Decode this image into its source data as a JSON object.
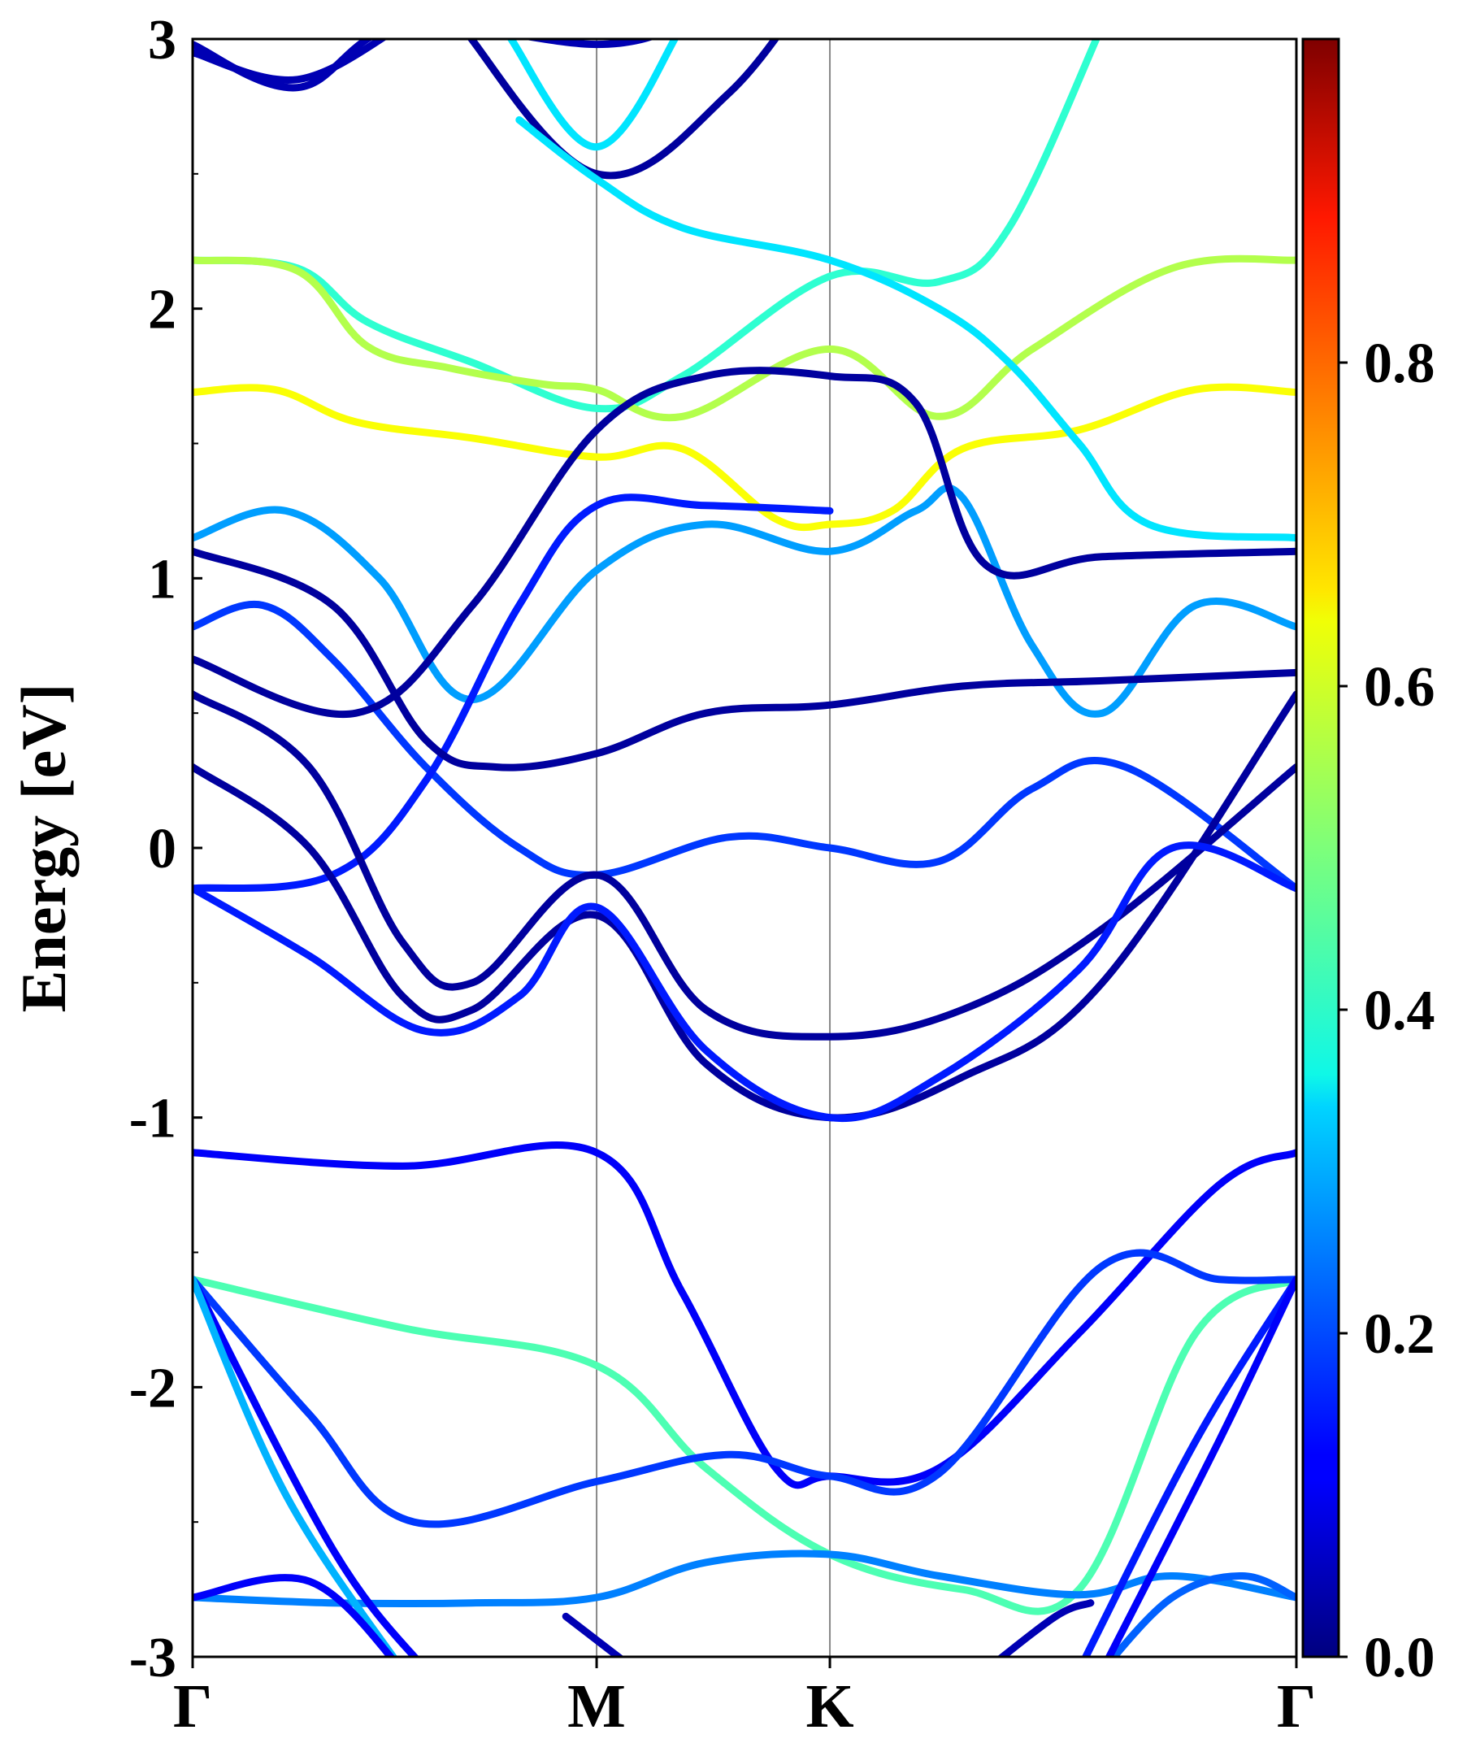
{
  "chart_data": {
    "type": "line",
    "subtype": "electronic band structure with projected weight",
    "title": "",
    "xlabel": "",
    "ylabel": "Energy [eV]",
    "ylim": [
      -3,
      3
    ],
    "y_ticks": [
      "-3",
      "-2",
      "-1",
      "0",
      "1",
      "2",
      "3"
    ],
    "x_ticks": [
      {
        "label": "Γ",
        "k": 0.0
      },
      {
        "label": "M",
        "k": 1.732
      },
      {
        "label": "K",
        "k": 2.732
      },
      {
        "label": "Γ",
        "k": 4.732
      }
    ],
    "xlim": [
      0,
      4.732
    ],
    "grid": false,
    "vertical_lines_at": [
      "M",
      "K"
    ],
    "colorbar": {
      "colormap": "jet",
      "range": [
        0.0,
        1.0
      ],
      "ticks": [
        "0.0",
        "0.2",
        "0.4",
        "0.6",
        "0.8"
      ]
    },
    "bands": [
      {
        "points": [
          [
            0,
            2.98
          ],
          [
            0.45,
            2.82
          ],
          [
            0.9,
            3.05
          ],
          [
            1.732,
            2.98
          ],
          [
            2.1,
            3.05
          ]
        ],
        "weight": 0.05
      },
      {
        "points": [
          [
            0,
            2.95
          ],
          [
            0.45,
            2.85
          ],
          [
            0.9,
            3.05
          ]
        ],
        "weight": 0.05
      },
      {
        "points": [
          [
            1.35,
            3.02
          ],
          [
            1.732,
            2.6
          ],
          [
            2.1,
            3.05
          ]
        ],
        "weight": 0.35
      },
      {
        "points": [
          [
            1.15,
            3.05
          ],
          [
            1.732,
            2.5
          ],
          [
            2.3,
            2.8
          ],
          [
            2.732,
            3.3
          ]
        ],
        "weight": 0.03
      },
      {
        "points": [
          [
            0,
            2.18
          ],
          [
            0.45,
            2.15
          ],
          [
            0.75,
            1.95
          ],
          [
            1.2,
            1.8
          ],
          [
            1.732,
            1.63
          ],
          [
            2.1,
            1.75
          ],
          [
            2.732,
            2.12
          ],
          [
            3.2,
            2.1
          ],
          [
            3.5,
            2.3
          ],
          [
            3.9,
            3.05
          ]
        ],
        "weight": 0.42
      },
      {
        "points": [
          [
            0,
            2.18
          ],
          [
            0.45,
            2.14
          ],
          [
            0.75,
            1.86
          ],
          [
            1.1,
            1.78
          ],
          [
            1.5,
            1.72
          ],
          [
            1.732,
            1.7
          ],
          [
            2.1,
            1.6
          ],
          [
            2.732,
            1.85
          ],
          [
            3.2,
            1.6
          ],
          [
            3.6,
            1.85
          ],
          [
            4.2,
            2.15
          ],
          [
            4.732,
            2.18
          ]
        ],
        "weight": 0.55
      },
      {
        "points": [
          [
            0,
            1.69
          ],
          [
            0.35,
            1.7
          ],
          [
            0.7,
            1.58
          ],
          [
            1.2,
            1.52
          ],
          [
            1.732,
            1.45
          ],
          [
            2.1,
            1.48
          ],
          [
            2.5,
            1.22
          ],
          [
            2.732,
            1.2
          ],
          [
            3.0,
            1.25
          ],
          [
            3.3,
            1.48
          ],
          [
            3.8,
            1.55
          ],
          [
            4.3,
            1.7
          ],
          [
            4.732,
            1.69
          ]
        ],
        "weight": 0.62
      },
      {
        "points": [
          [
            1.4,
            2.7
          ],
          [
            1.732,
            2.48
          ],
          [
            2.1,
            2.3
          ],
          [
            2.732,
            2.18
          ],
          [
            3.2,
            2.0
          ],
          [
            3.5,
            1.8
          ],
          [
            3.8,
            1.5
          ],
          [
            4.1,
            1.2
          ],
          [
            4.732,
            1.15
          ]
        ],
        "weight": 0.35
      },
      {
        "points": [
          [
            0,
            1.15
          ],
          [
            0.4,
            1.25
          ],
          [
            0.8,
            1.0
          ],
          [
            1.2,
            0.55
          ],
          [
            1.732,
            1.03
          ],
          [
            2.2,
            1.2
          ],
          [
            2.732,
            1.1
          ],
          [
            3.1,
            1.25
          ],
          [
            3.3,
            1.3
          ],
          [
            3.6,
            0.75
          ],
          [
            3.9,
            0.5
          ],
          [
            4.3,
            0.9
          ],
          [
            4.732,
            0.82
          ]
        ],
        "weight": 0.28
      },
      {
        "points": [
          [
            0,
            0.82
          ],
          [
            0.3,
            0.9
          ],
          [
            0.6,
            0.7
          ],
          [
            1.0,
            0.3
          ],
          [
            1.4,
            0.0
          ],
          [
            1.732,
            -0.1
          ],
          [
            2.3,
            0.04
          ],
          [
            2.732,
            0.0
          ],
          [
            3.2,
            -0.05
          ],
          [
            3.6,
            0.22
          ],
          [
            4.0,
            0.3
          ],
          [
            4.732,
            -0.15
          ]
        ],
        "weight": 0.18
      },
      {
        "points": [
          [
            0,
            -0.15
          ],
          [
            0.6,
            -0.1
          ],
          [
            1.0,
            0.25
          ],
          [
            1.4,
            0.9
          ],
          [
            1.732,
            1.27
          ],
          [
            2.2,
            1.27
          ],
          [
            2.732,
            1.25
          ]
        ],
        "weight": 0.15
      },
      {
        "points": [
          [
            0,
            1.1
          ],
          [
            0.6,
            0.9
          ],
          [
            1.0,
            0.4
          ],
          [
            1.3,
            0.3
          ],
          [
            1.732,
            0.35
          ],
          [
            2.2,
            0.5
          ],
          [
            2.732,
            0.53
          ],
          [
            3.3,
            0.6
          ],
          [
            3.9,
            0.62
          ],
          [
            4.732,
            0.65
          ]
        ],
        "weight": 0.03
      },
      {
        "points": [
          [
            0,
            0.7
          ],
          [
            0.7,
            0.5
          ],
          [
            1.2,
            0.9
          ],
          [
            1.732,
            1.55
          ],
          [
            2.2,
            1.75
          ],
          [
            2.732,
            1.75
          ],
          [
            3.1,
            1.65
          ],
          [
            3.4,
            1.05
          ],
          [
            3.9,
            1.08
          ],
          [
            4.732,
            1.1
          ]
        ],
        "weight": 0.03
      },
      {
        "points": [
          [
            0,
            0.57
          ],
          [
            0.5,
            0.3
          ],
          [
            0.9,
            -0.35
          ],
          [
            1.2,
            -0.5
          ],
          [
            1.732,
            -0.1
          ],
          [
            2.2,
            -0.6
          ],
          [
            2.732,
            -0.7
          ],
          [
            3.3,
            -0.6
          ],
          [
            3.9,
            -0.3
          ],
          [
            4.732,
            0.3
          ]
        ],
        "weight": 0.03
      },
      {
        "points": [
          [
            0,
            0.3
          ],
          [
            0.5,
            0.0
          ],
          [
            0.9,
            -0.55
          ],
          [
            1.2,
            -0.6
          ],
          [
            1.732,
            -0.25
          ],
          [
            2.2,
            -0.8
          ],
          [
            2.732,
            -1.0
          ],
          [
            3.3,
            -0.85
          ],
          [
            3.9,
            -0.5
          ],
          [
            4.732,
            0.57
          ]
        ],
        "weight": 0.03
      },
      {
        "points": [
          [
            0,
            -0.15
          ],
          [
            0.5,
            -0.4
          ],
          [
            1.0,
            -0.68
          ],
          [
            1.4,
            -0.55
          ],
          [
            1.732,
            -0.22
          ],
          [
            2.2,
            -0.75
          ],
          [
            2.732,
            -1.0
          ],
          [
            3.2,
            -0.85
          ],
          [
            3.8,
            -0.45
          ],
          [
            4.2,
            0.0
          ],
          [
            4.732,
            -0.15
          ]
        ],
        "weight": 0.15
      },
      {
        "points": [
          [
            0,
            -1.13
          ],
          [
            0.9,
            -1.18
          ],
          [
            1.732,
            -1.13
          ],
          [
            2.1,
            -1.65
          ],
          [
            2.5,
            -2.3
          ],
          [
            2.732,
            -2.33
          ],
          [
            3.2,
            -2.3
          ],
          [
            3.8,
            -1.8
          ],
          [
            4.4,
            -1.25
          ],
          [
            4.732,
            -1.13
          ]
        ],
        "weight": 0.12
      },
      {
        "points": [
          [
            0,
            -1.6
          ],
          [
            0.9,
            -1.78
          ],
          [
            1.732,
            -1.92
          ],
          [
            2.2,
            -2.3
          ],
          [
            2.732,
            -2.62
          ],
          [
            3.3,
            -2.75
          ],
          [
            3.8,
            -2.75
          ],
          [
            4.3,
            -1.8
          ],
          [
            4.732,
            -1.6
          ]
        ],
        "weight": 0.45
      },
      {
        "points": [
          [
            0,
            -1.6
          ],
          [
            0.5,
            -2.1
          ],
          [
            0.95,
            -2.5
          ],
          [
            1.732,
            -2.35
          ],
          [
            2.3,
            -2.25
          ],
          [
            2.732,
            -2.33
          ],
          [
            3.2,
            -2.32
          ],
          [
            3.9,
            -1.55
          ],
          [
            4.4,
            -1.6
          ],
          [
            4.732,
            -1.6
          ]
        ],
        "weight": 0.18
      },
      {
        "points": [
          [
            0,
            -2.78
          ],
          [
            0.6,
            -2.8
          ],
          [
            1.2,
            -2.8
          ],
          [
            1.732,
            -2.78
          ],
          [
            2.2,
            -2.65
          ],
          [
            2.732,
            -2.62
          ],
          [
            3.2,
            -2.7
          ],
          [
            3.8,
            -2.77
          ],
          [
            4.2,
            -2.7
          ],
          [
            4.732,
            -2.78
          ]
        ],
        "weight": 0.25
      },
      {
        "points": [
          [
            0,
            -1.6
          ],
          [
            0.6,
            -2.6
          ],
          [
            1.0,
            -3.05
          ]
        ],
        "weight": 0.12
      },
      {
        "points": [
          [
            0,
            -1.6
          ],
          [
            0.4,
            -2.4
          ],
          [
            0.9,
            -3.05
          ]
        ],
        "weight": 0.3
      },
      {
        "points": [
          [
            0,
            -2.78
          ],
          [
            0.5,
            -2.72
          ],
          [
            0.9,
            -3.05
          ]
        ],
        "weight": 0.12
      },
      {
        "points": [
          [
            3.9,
            -3.05
          ],
          [
            4.2,
            -2.78
          ],
          [
            4.5,
            -2.7
          ],
          [
            4.732,
            -2.78
          ]
        ],
        "weight": 0.22
      },
      {
        "points": [
          [
            3.8,
            -3.05
          ],
          [
            4.3,
            -2.2
          ],
          [
            4.732,
            -1.6
          ]
        ],
        "weight": 0.15
      },
      {
        "points": [
          [
            3.9,
            -3.05
          ],
          [
            4.4,
            -2.2
          ],
          [
            4.732,
            -1.6
          ]
        ],
        "weight": 0.12
      },
      {
        "points": [
          [
            1.6,
            -2.85
          ],
          [
            1.9,
            -3.05
          ]
        ],
        "weight": 0.05
      },
      {
        "points": [
          [
            3.4,
            -3.05
          ],
          [
            3.7,
            -2.85
          ],
          [
            3.85,
            -2.8
          ]
        ],
        "weight": 0.05
      }
    ]
  }
}
